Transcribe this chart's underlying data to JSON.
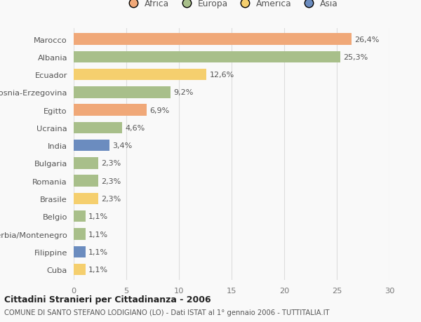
{
  "categories": [
    "Marocco",
    "Albania",
    "Ecuador",
    "Bosnia-Erzegovina",
    "Egitto",
    "Ucraina",
    "India",
    "Bulgaria",
    "Romania",
    "Brasile",
    "Belgio",
    "Serbia/Montenegro",
    "Filippine",
    "Cuba"
  ],
  "values": [
    26.4,
    25.3,
    12.6,
    9.2,
    6.9,
    4.6,
    3.4,
    2.3,
    2.3,
    2.3,
    1.1,
    1.1,
    1.1,
    1.1
  ],
  "bar_colors": [
    "#f0a878",
    "#a8bf8a",
    "#f5cf6e",
    "#a8bf8a",
    "#f0a878",
    "#a8bf8a",
    "#6b8cbf",
    "#a8bf8a",
    "#a8bf8a",
    "#f5cf6e",
    "#a8bf8a",
    "#a8bf8a",
    "#6b8cbf",
    "#f5cf6e"
  ],
  "labels": [
    "26,4%",
    "25,3%",
    "12,6%",
    "9,2%",
    "6,9%",
    "4,6%",
    "3,4%",
    "2,3%",
    "2,3%",
    "2,3%",
    "1,1%",
    "1,1%",
    "1,1%",
    "1,1%"
  ],
  "legend": [
    {
      "label": "Africa",
      "color": "#f0a878"
    },
    {
      "label": "Europa",
      "color": "#a8bf8a"
    },
    {
      "label": "America",
      "color": "#f5cf6e"
    },
    {
      "label": "Asia",
      "color": "#6b8cbf"
    }
  ],
  "xlim": [
    0,
    30
  ],
  "xticks": [
    0,
    5,
    10,
    15,
    20,
    25,
    30
  ],
  "title_bold": "Cittadini Stranieri per Cittadinanza - 2006",
  "subtitle": "COMUNE DI SANTO STEFANO LODIGIANO (LO) - Dati ISTAT al 1° gennaio 2006 - TUTTITALIA.IT",
  "background_color": "#f9f9f9",
  "bar_height": 0.65,
  "grid_color": "#dddddd",
  "label_fontsize": 8.0,
  "ytick_fontsize": 8.2,
  "xtick_fontsize": 8.2
}
